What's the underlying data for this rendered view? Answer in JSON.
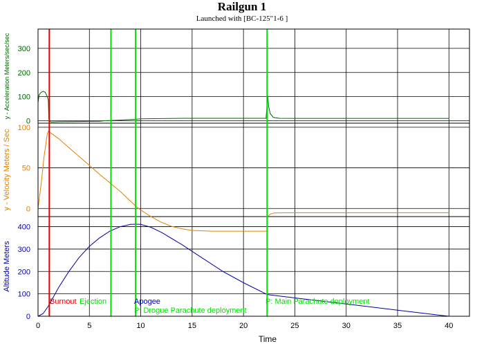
{
  "window": {
    "title": "Railgun 1",
    "subtitle": "Launched with [BC-125\"1-6   ]"
  },
  "chart_data": {
    "type": "line",
    "xlabel": "Time",
    "xlim": [
      0,
      42
    ],
    "x_ticks": [
      0,
      5,
      10,
      15,
      20,
      25,
      30,
      35,
      40
    ],
    "grid": true,
    "colors": {
      "acceleration": "#006400",
      "velocity": "#e08000",
      "altitude": "#0000a0",
      "burnout": "#e00000",
      "events": "#00e000"
    },
    "panels": [
      {
        "id": "acceleration",
        "ylabel": "y - Acceleration Meters/sec/sec",
        "ylim": [
          -10,
          380
        ],
        "y_ticks": [
          0,
          100,
          200,
          300
        ],
        "series": [
          {
            "color": "#006400",
            "x": [
              0,
              0.1,
              0.3,
              0.5,
              0.7,
              0.9,
              1.0,
              1.05,
              1.1,
              1.3,
              2,
              4,
              6,
              6.5,
              7,
              8,
              9.5,
              10,
              12,
              14,
              16,
              18,
              20,
              22.2,
              22.35,
              22.45,
              22.6,
              22.9,
              23.5,
              25,
              30,
              35,
              40
            ],
            "y": [
              75,
              108,
              118,
              122,
              118,
              100,
              85,
              10,
              -2,
              -5,
              -4,
              -3,
              -2,
              0,
              1,
              3,
              6,
              8,
              9,
              10,
              10,
              10,
              10,
              10,
              105,
              60,
              30,
              14,
              10,
              9.8,
              9.8,
              9.8,
              9.8
            ]
          }
        ]
      },
      {
        "id": "velocity",
        "ylabel": "y - Velocity Meters / Sec",
        "ylim": [
          -10,
          105
        ],
        "y_ticks": [
          0,
          50,
          100
        ],
        "series": [
          {
            "color": "#e08000",
            "x": [
              0,
              0.3,
              0.6,
              0.9,
              1.0,
              2,
              4,
              6,
              8,
              9.5,
              10,
              11,
              12,
              13,
              14,
              15,
              17,
              20,
              22.3,
              22.35,
              22.6,
              23,
              25,
              30,
              35,
              40
            ],
            "y": [
              0,
              30,
              65,
              92,
              95,
              86,
              64,
              42,
              21,
              3,
              -2,
              -10,
              -17,
              -22,
              -25,
              -27,
              -28,
              -28,
              -28,
              -10,
              -7,
              -5.5,
              -5.2,
              -5.2,
              -5.2,
              -5.2
            ]
          }
        ]
      },
      {
        "id": "altitude",
        "ylabel": "Altitude Meters",
        "ylim": [
          0,
          445
        ],
        "y_ticks": [
          0,
          100,
          200,
          300,
          400
        ],
        "series": [
          {
            "color": "#0000a0",
            "x": [
              0,
              0.5,
              1,
              2,
              3,
              4,
              5,
              6,
              7,
              8,
              9,
              9.5,
              10,
              11,
              12,
              14,
              16,
              18,
              20,
              22.3,
              25,
              30,
              35,
              40
            ],
            "y": [
              0,
              12,
              45,
              128,
              200,
              262,
              312,
              350,
              380,
              400,
              410,
              411,
              410,
              397,
              375,
              320,
              260,
              200,
              150,
              97,
              82,
              55,
              27,
              0
            ]
          }
        ]
      }
    ],
    "events": [
      {
        "label": "Burnout",
        "x": 1.1,
        "color": "#e00000"
      },
      {
        "label": "Ejection",
        "x": 7.1,
        "color": "#00e000"
      },
      {
        "label": "Apogee",
        "x": 9.5,
        "color": "#0000a0"
      },
      {
        "label": "P: Drogue Parachute deployment",
        "x": 9.5,
        "color": "#00e000"
      },
      {
        "label": "P: Main Parachute deployment",
        "x": 22.3,
        "color": "#00e000"
      }
    ]
  }
}
